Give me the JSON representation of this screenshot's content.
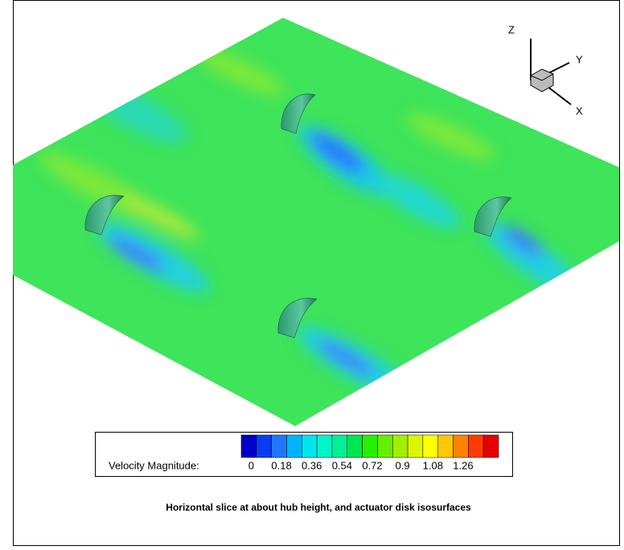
{
  "triad": {
    "z": "Z",
    "y": "Y",
    "x": "X"
  },
  "legend": {
    "title": "Velocity Magnitude:",
    "ticks": [
      0,
      0.18,
      0.36,
      0.54,
      0.72,
      0.9,
      1.08,
      1.26
    ],
    "colors": [
      "#0000c8",
      "#0a3cf0",
      "#1e78ff",
      "#00b4ff",
      "#00e6f0",
      "#00f5c8",
      "#00f096",
      "#00e650",
      "#28f000",
      "#64f000",
      "#a0f000",
      "#dcf500",
      "#ffff00",
      "#ffc800",
      "#ff8200",
      "#ff3c00",
      "#e60000"
    ]
  },
  "caption": "Horizontal slice at about hub height, and actuator disk isosurfaces"
}
